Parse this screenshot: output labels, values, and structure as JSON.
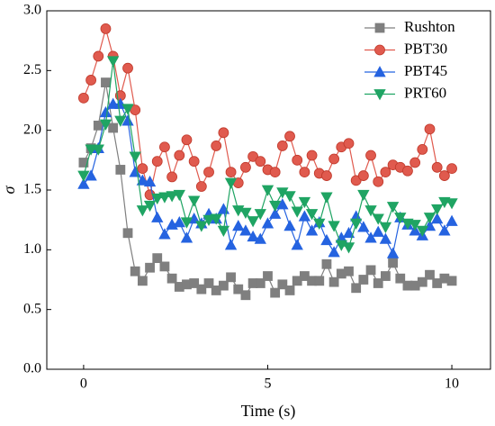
{
  "chart_data": {
    "type": "line",
    "xlabel": "Time (s)",
    "ylabel": "σ",
    "x": [
      0,
      0.2,
      0.4,
      0.6,
      0.8,
      1,
      1.2,
      1.4,
      1.6,
      1.8,
      2,
      2.2,
      2.4,
      2.6,
      2.8,
      3,
      3.2,
      3.4,
      3.6,
      3.8,
      4,
      4.2,
      4.4,
      4.6,
      4.8,
      5,
      5.2,
      5.4,
      5.6,
      5.8,
      6,
      6.2,
      6.4,
      6.6,
      6.8,
      7,
      7.2,
      7.4,
      7.6,
      7.8,
      8,
      8.2,
      8.4,
      8.6,
      8.8,
      9,
      9.2,
      9.4,
      9.6,
      9.8,
      10
    ],
    "series": [
      {
        "name": "Rushton",
        "color": "#7f7f7f",
        "marker": "square",
        "values": [
          1.73,
          1.85,
          2.04,
          2.4,
          2.02,
          1.67,
          1.14,
          0.82,
          0.74,
          0.85,
          0.93,
          0.86,
          0.76,
          0.69,
          0.71,
          0.72,
          0.67,
          0.72,
          0.66,
          0.7,
          0.77,
          0.67,
          0.62,
          0.72,
          0.72,
          0.78,
          0.64,
          0.71,
          0.66,
          0.74,
          0.78,
          0.74,
          0.74,
          0.88,
          0.73,
          0.8,
          0.82,
          0.68,
          0.75,
          0.83,
          0.72,
          0.78,
          0.89,
          0.76,
          0.7,
          0.7,
          0.73,
          0.79,
          0.72,
          0.76,
          0.74
        ]
      },
      {
        "name": "PBT30",
        "color": "#e05a4e",
        "marker": "circle",
        "values": [
          2.27,
          2.42,
          2.62,
          2.85,
          2.62,
          2.29,
          2.52,
          2.17,
          1.68,
          1.46,
          1.74,
          1.86,
          1.61,
          1.79,
          1.92,
          1.74,
          1.53,
          1.65,
          1.87,
          1.98,
          1.65,
          1.56,
          1.69,
          1.78,
          1.74,
          1.67,
          1.65,
          1.87,
          1.95,
          1.75,
          1.65,
          1.79,
          1.64,
          1.62,
          1.76,
          1.86,
          1.89,
          1.58,
          1.62,
          1.79,
          1.57,
          1.65,
          1.71,
          1.69,
          1.66,
          1.73,
          1.84,
          2.01,
          1.69,
          1.62,
          1.68
        ]
      },
      {
        "name": "PBT45",
        "color": "#2563e0",
        "marker": "triangle-up",
        "values": [
          1.55,
          1.62,
          1.85,
          2.15,
          2.22,
          2.22,
          2.08,
          1.65,
          1.58,
          1.57,
          1.27,
          1.13,
          1.21,
          1.23,
          1.1,
          1.26,
          1.22,
          1.3,
          1.26,
          1.34,
          1.04,
          1.2,
          1.16,
          1.11,
          1.09,
          1.22,
          1.3,
          1.38,
          1.2,
          1.04,
          1.28,
          1.16,
          1.23,
          1.08,
          0.98,
          1.1,
          1.14,
          1.28,
          1.19,
          1.1,
          1.15,
          1.09,
          0.97,
          1.27,
          1.21,
          1.16,
          1.12,
          1.2,
          1.26,
          1.16,
          1.24
        ]
      },
      {
        "name": "PRT60",
        "color": "#1fa463",
        "marker": "triangle-down",
        "values": [
          1.62,
          1.84,
          1.84,
          2.05,
          2.58,
          2.08,
          2.18,
          1.78,
          1.33,
          1.37,
          1.43,
          1.44,
          1.45,
          1.46,
          1.23,
          1.41,
          1.2,
          1.25,
          1.26,
          1.16,
          1.56,
          1.33,
          1.31,
          1.24,
          1.3,
          1.5,
          1.37,
          1.48,
          1.45,
          1.32,
          1.4,
          1.3,
          1.22,
          1.44,
          1.2,
          1.04,
          1.02,
          1.22,
          1.46,
          1.33,
          1.26,
          1.19,
          1.36,
          1.27,
          1.22,
          1.21,
          1.16,
          1.27,
          1.34,
          1.4,
          1.39
        ]
      }
    ],
    "xlim": [
      -1,
      11.05
    ],
    "xticks": [
      0,
      5,
      10
    ],
    "ylim": [
      0,
      3
    ],
    "yticks": [
      {
        "value": 0,
        "label": "0.0"
      },
      {
        "value": 0.5,
        "label": "0.5"
      },
      {
        "value": 1,
        "label": "1.0"
      },
      {
        "value": 1.5,
        "label": "1.5"
      },
      {
        "value": 2,
        "label": "2.0"
      },
      {
        "value": 2.5,
        "label": "2.5"
      },
      {
        "value": 3,
        "label": "3.0"
      }
    ],
    "legend": "upper right",
    "grid": false
  }
}
